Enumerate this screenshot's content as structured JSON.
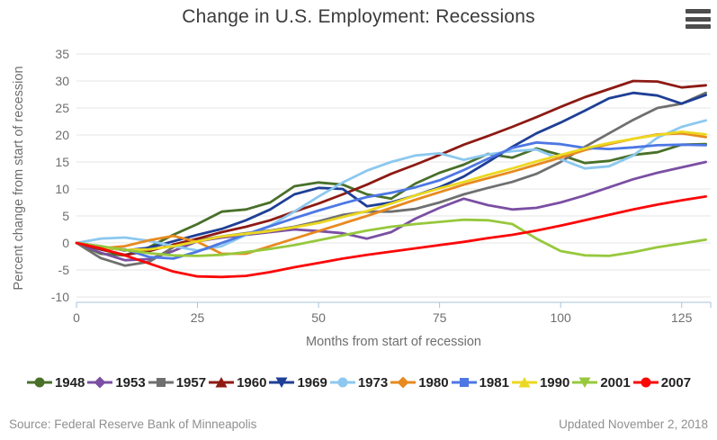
{
  "footer": {
    "source": "Source: Federal Reserve Bank of Minneapolis",
    "updated": "Updated November 2, 2018"
  },
  "menu": {
    "icon": "hamburger-icon"
  },
  "colors": {
    "grid": "#e6e6e6",
    "axis_line": "#a9c2d9",
    "title_text": "#3b3b3b",
    "axis_text": "#6e6e6e",
    "legend_text": "#222222",
    "footer_text": "#8f8f8f"
  },
  "chart_data": {
    "type": "line",
    "title": "Change in U.S. Employment: Recessions",
    "xlabel": "Months from start of recession",
    "ylabel": "Percent change from start of recession",
    "xlim": [
      0,
      131
    ],
    "ylim": [
      -10,
      35
    ],
    "x_ticks": [
      0,
      25,
      50,
      75,
      100,
      125
    ],
    "y_ticks": [
      35,
      30,
      25,
      20,
      15,
      10,
      5,
      0,
      -5,
      -10
    ],
    "grid": true,
    "legend_position": "bottom",
    "x_step": 5,
    "series": [
      {
        "name": "1948",
        "color": "#49702a",
        "marker": "circle",
        "values": [
          0,
          -2,
          -2.3,
          -0.8,
          1.5,
          3.5,
          5.8,
          6.2,
          7.5,
          10.5,
          11.2,
          10.8,
          9,
          8.2,
          11,
          13,
          14.5,
          16.5,
          15.8,
          17.5,
          16.3,
          14.8,
          15.2,
          16.3,
          16.8,
          18.2,
          18.3
        ]
      },
      {
        "name": "1953",
        "color": "#7a4fa3",
        "marker": "diamond",
        "values": [
          0,
          -1.8,
          -3.2,
          -3,
          -1.5,
          0.3,
          1,
          1.5,
          2,
          2.5,
          2.2,
          1.8,
          0.8,
          2,
          4.5,
          6.5,
          8.2,
          7,
          6.2,
          6.5,
          7.5,
          8.8,
          10.3,
          11.8,
          13,
          14,
          15
        ]
      },
      {
        "name": "1957",
        "color": "#6f6f6f",
        "marker": "square",
        "values": [
          0,
          -2.8,
          -4.2,
          -3.5,
          -0.8,
          0.5,
          1.2,
          1.8,
          2.3,
          3,
          4,
          5.2,
          5.8,
          5.8,
          6.3,
          7.5,
          9,
          10.2,
          11.3,
          12.8,
          15,
          17.8,
          20.3,
          22.8,
          25,
          25.8,
          27.8
        ]
      },
      {
        "name": "1960",
        "color": "#8d1a13",
        "marker": "triangle",
        "values": [
          0,
          -1.2,
          -2.2,
          -1.5,
          -0.3,
          0.8,
          2,
          3,
          4.2,
          5.8,
          7.3,
          9,
          10.8,
          12.8,
          14.5,
          16.3,
          18.2,
          19.8,
          21.5,
          23.3,
          25.2,
          27,
          28.5,
          30,
          29.9,
          28.8,
          29.2
        ]
      },
      {
        "name": "1969",
        "color": "#1e3f96",
        "marker": "triangle-down",
        "values": [
          0,
          -0.6,
          -1.4,
          -0.9,
          0.3,
          1.5,
          2.6,
          4.2,
          6.2,
          9,
          10.2,
          10,
          6.8,
          7.5,
          8.8,
          10.3,
          12.3,
          15,
          17.8,
          20.3,
          22.3,
          24.5,
          26.8,
          27.8,
          27.3,
          25.8,
          27.4
        ]
      },
      {
        "name": "1973",
        "color": "#8cc8ef",
        "marker": "circle",
        "values": [
          0,
          0.8,
          1,
          0.4,
          -0.6,
          -1.4,
          -0.6,
          1.5,
          3.2,
          5.8,
          8.6,
          11.2,
          13.4,
          15,
          16.2,
          16.6,
          15.4,
          16.4,
          17,
          17.3,
          15.5,
          13.8,
          14.2,
          16.2,
          19.5,
          21.5,
          22.7
        ]
      },
      {
        "name": "1980",
        "color": "#e78a20",
        "marker": "diamond",
        "values": [
          0,
          -1,
          -0.6,
          0.5,
          1.3,
          0.2,
          -2,
          -2,
          -0.6,
          0.8,
          2.2,
          3.6,
          5,
          6.5,
          8,
          9.4,
          10.8,
          12,
          13.2,
          14.5,
          15.8,
          17.2,
          18.3,
          19.3,
          20.1,
          20.3,
          19.6
        ]
      },
      {
        "name": "1981",
        "color": "#4d77e3",
        "marker": "square",
        "values": [
          0,
          -1,
          -1.2,
          -2.6,
          -2.9,
          -1.6,
          0,
          1.6,
          3.1,
          4.6,
          6,
          7.3,
          8.5,
          9.3,
          10.3,
          11.6,
          13.5,
          15.6,
          17.6,
          18.6,
          18.3,
          17.6,
          17.4,
          17.7,
          18.1,
          18.2,
          18.1
        ]
      },
      {
        "name": "1990",
        "color": "#ecd820",
        "marker": "triangle",
        "values": [
          0,
          -0.8,
          -1.3,
          -1.2,
          -0.6,
          0.3,
          1.2,
          1.7,
          2.2,
          2.9,
          3.7,
          4.8,
          5.9,
          7.3,
          8.8,
          10.1,
          11.3,
          12.6,
          13.8,
          15.1,
          16.3,
          17.5,
          18.5,
          19.3,
          20,
          20.6,
          20.1
        ]
      },
      {
        "name": "2001",
        "color": "#97c83d",
        "marker": "triangle-down",
        "values": [
          0,
          -0.6,
          -1.3,
          -1.9,
          -2.3,
          -2.4,
          -2.2,
          -1.7,
          -1.1,
          -0.4,
          0.5,
          1.4,
          2.3,
          3,
          3.5,
          3.9,
          4.3,
          4.2,
          3.5,
          0.8,
          -1.5,
          -2.3,
          -2.4,
          -1.7,
          -0.8,
          -0.1,
          0.6
        ]
      },
      {
        "name": "2007",
        "color": "#fb0707",
        "marker": "circle",
        "values": [
          0,
          -1,
          -2.3,
          -3.8,
          -5.3,
          -6.2,
          -6.3,
          -6.1,
          -5.4,
          -4.5,
          -3.7,
          -2.9,
          -2.2,
          -1.6,
          -1,
          -0.4,
          0.2,
          0.9,
          1.5,
          2.3,
          3.2,
          4.2,
          5.2,
          6.2,
          7.1,
          7.9,
          8.6
        ]
      }
    ]
  }
}
